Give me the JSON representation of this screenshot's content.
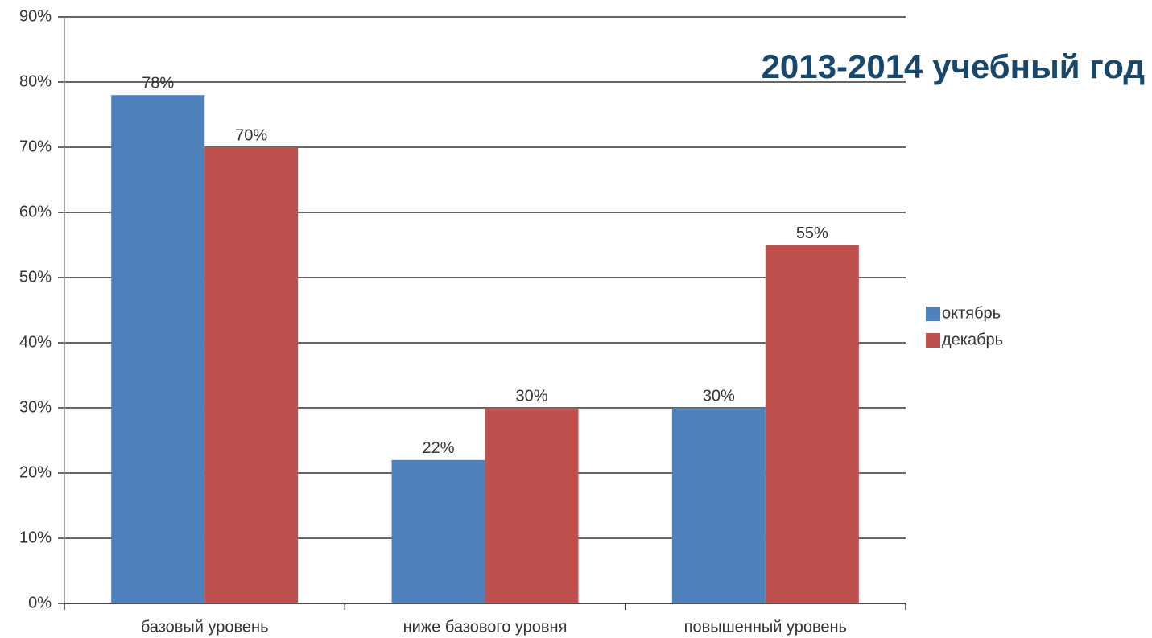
{
  "chart_data": {
    "type": "bar",
    "title": "2013-2014 учебный год",
    "categories": [
      "базовый уровень",
      "ниже базового уровня",
      "повышенный уровень"
    ],
    "series": [
      {
        "name": "октябрь",
        "color": "#4f81bd",
        "values": [
          78,
          22,
          30
        ],
        "value_labels": [
          "78%",
          "22%",
          "30%"
        ]
      },
      {
        "name": "декабрь",
        "color": "#c0504d",
        "values": [
          70,
          30,
          55
        ],
        "value_labels": [
          "70%",
          "30%",
          "55%"
        ]
      }
    ],
    "ylim": [
      0,
      90
    ],
    "yticks": [
      {
        "value": 0,
        "label": "0%"
      },
      {
        "value": 10,
        "label": "10%"
      },
      {
        "value": 20,
        "label": "20%"
      },
      {
        "value": 30,
        "label": "30%"
      },
      {
        "value": 40,
        "label": "40%"
      },
      {
        "value": 50,
        "label": "50%"
      },
      {
        "value": 60,
        "label": "60%"
      },
      {
        "value": 70,
        "label": "70%"
      },
      {
        "value": 80,
        "label": "80%"
      },
      {
        "value": 90,
        "label": "90%"
      }
    ],
    "grid": true,
    "legend": "right"
  }
}
